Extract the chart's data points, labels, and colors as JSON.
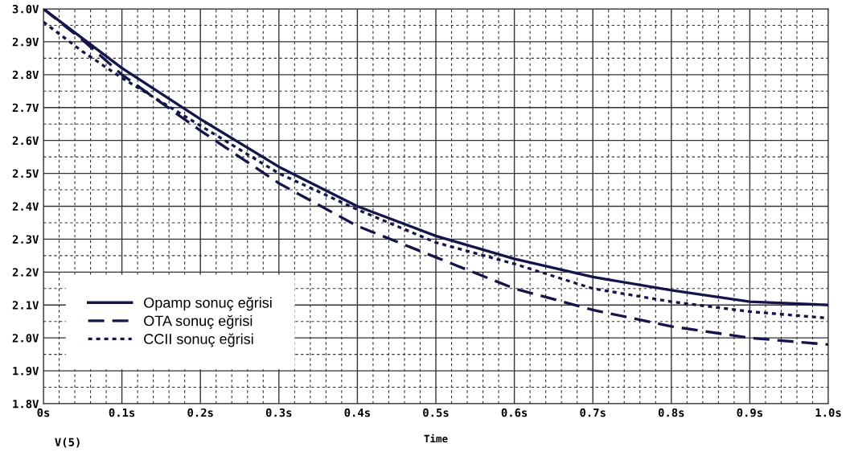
{
  "chart_data": {
    "type": "line",
    "xlabel": "Time",
    "x": [
      0,
      0.05,
      0.1,
      0.2,
      0.3,
      0.4,
      0.5,
      0.6,
      0.7,
      0.8,
      0.9,
      1.0
    ],
    "series": [
      {
        "name": "Opamp sonuç eğrisi",
        "color": "#14154a",
        "line_style": "solid",
        "values": [
          3.0,
          2.91,
          2.82,
          2.665,
          2.52,
          2.4,
          2.31,
          2.24,
          2.185,
          2.145,
          2.11,
          2.1
        ]
      },
      {
        "name": "OTA sonuç eğrisi",
        "color": "#14154a",
        "line_style": "dashed",
        "values": [
          3.0,
          2.905,
          2.8,
          2.63,
          2.47,
          2.34,
          2.245,
          2.15,
          2.085,
          2.035,
          2.0,
          1.98
        ]
      },
      {
        "name": "CCII sonuç eğrisi",
        "color": "#14154a",
        "line_style": "dotted",
        "values": [
          2.96,
          2.87,
          2.79,
          2.645,
          2.5,
          2.39,
          2.29,
          2.225,
          2.15,
          2.11,
          2.08,
          2.06
        ]
      }
    ],
    "xlim": [
      0,
      1.0
    ],
    "ylim": [
      1.8,
      3.0
    ],
    "xticks": [
      {
        "value": 0,
        "label": "0s"
      },
      {
        "value": 0.1,
        "label": "0.1s"
      },
      {
        "value": 0.2,
        "label": "0.2s"
      },
      {
        "value": 0.3,
        "label": "0.3s"
      },
      {
        "value": 0.4,
        "label": "0.4s"
      },
      {
        "value": 0.5,
        "label": "0.5s"
      },
      {
        "value": 0.6,
        "label": "0.6s"
      },
      {
        "value": 0.7,
        "label": "0.7s"
      },
      {
        "value": 0.8,
        "label": "0.8s"
      },
      {
        "value": 0.9,
        "label": "0.9s"
      },
      {
        "value": 1.0,
        "label": "1.0s"
      }
    ],
    "yticks": [
      {
        "value": 1.8,
        "label": "1.8V"
      },
      {
        "value": 1.9,
        "label": "1.9V"
      },
      {
        "value": 2.0,
        "label": "2.0V"
      },
      {
        "value": 2.1,
        "label": "2.1V"
      },
      {
        "value": 2.2,
        "label": "2.2V"
      },
      {
        "value": 2.3,
        "label": "2.3V"
      },
      {
        "value": 2.4,
        "label": "2.4V"
      },
      {
        "value": 2.5,
        "label": "2.5V"
      },
      {
        "value": 2.6,
        "label": "2.6V"
      },
      {
        "value": 2.7,
        "label": "2.7V"
      },
      {
        "value": 2.8,
        "label": "2.8V"
      },
      {
        "value": 2.9,
        "label": "2.9V"
      },
      {
        "value": 3.0,
        "label": "3.0V"
      }
    ],
    "grid": true,
    "legend": "bottom left",
    "annotations": [
      "V(5)"
    ]
  }
}
